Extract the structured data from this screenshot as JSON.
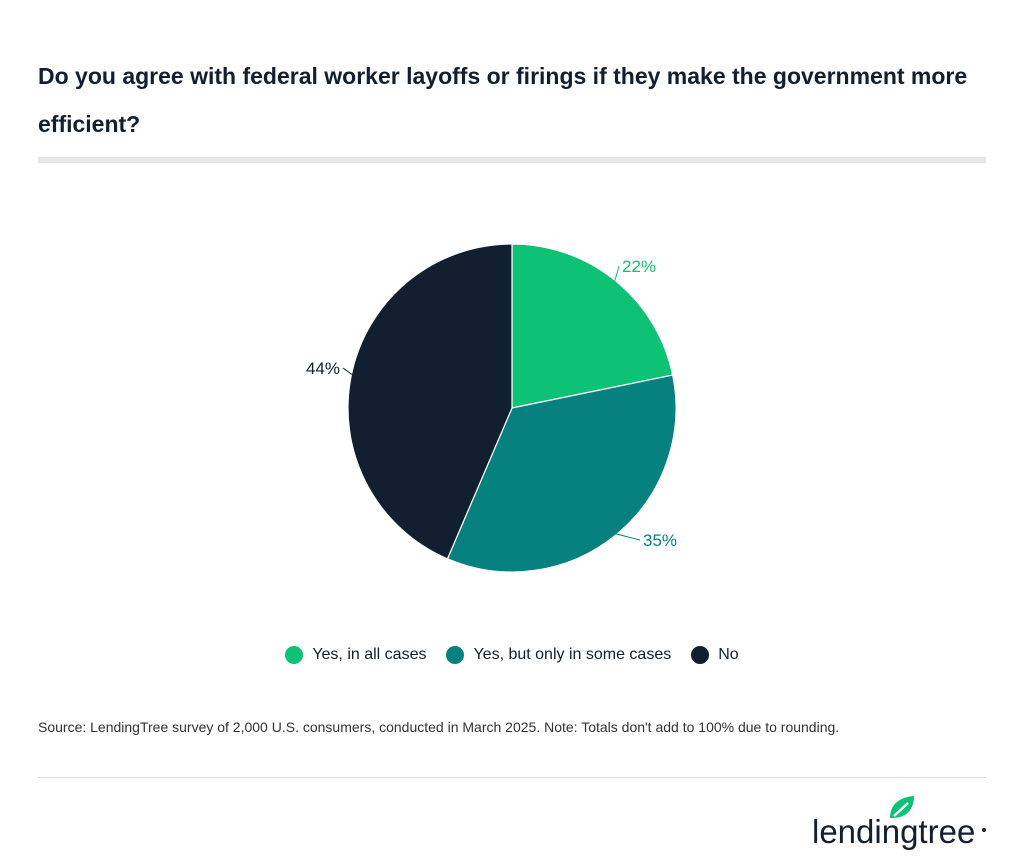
{
  "chart_data": {
    "type": "pie",
    "title": "Do you agree with federal worker layoffs or firings if they make the government more efficient?",
    "slices": [
      {
        "label": "Yes, in all cases",
        "value": 22,
        "display": "22%",
        "color": "#0dc275"
      },
      {
        "label": "Yes, but only in some cases",
        "value": 35,
        "display": "35%",
        "color": "#078080"
      },
      {
        "label": "No",
        "value": 44,
        "display": "44%",
        "color": "#111f30"
      }
    ],
    "start_angle": "12 o'clock",
    "direction": "clockwise",
    "legend_position": "bottom"
  },
  "source": "Source: LendingTree survey of 2,000 U.S. consumers, conducted in March 2025. Note: Totals don't add to 100% due to rounding.",
  "logo": {
    "text": "lendingtree",
    "leaf_color": "#0dc275"
  }
}
